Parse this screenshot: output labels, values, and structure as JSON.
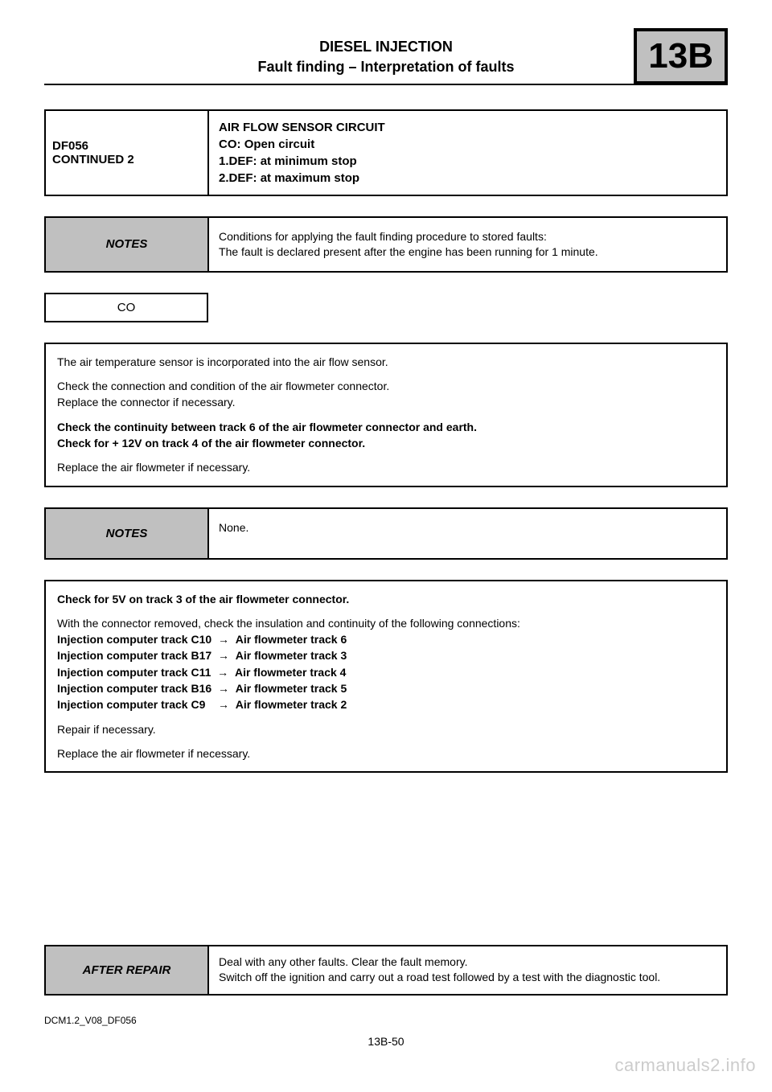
{
  "section_badge": "13B",
  "header": {
    "title": "DIESEL INJECTION",
    "subtitle": "Fault finding – Interpretation of faults"
  },
  "fault": {
    "code_lines": [
      "DF056",
      "CONTINUED 2"
    ],
    "desc": "AIR FLOW SENSOR CIRCUIT\nCO: Open circuit\n1.DEF: at minimum stop\n2.DEF: at maximum stop"
  },
  "notes1": {
    "label": "NOTES",
    "text": "Conditions for applying the fault finding procedure to stored faults:\nThe fault is declared present after the engine has been running for 1 minute."
  },
  "def_code": "CO",
  "proc1": {
    "p1": "The air temperature sensor is incorporated into the air flow sensor.",
    "p2": "Check the connection and condition of the air flowmeter connector.\nReplace the connector if necessary.",
    "p3": "Check the continuity between track 6 of the air flowmeter connector and earth.\nCheck for + 12V on track 4 of the air flowmeter connector.",
    "p4": "Replace the air flowmeter if necessary."
  },
  "notes2": {
    "label": "NOTES",
    "text": "None."
  },
  "proc2": {
    "p1": "Check for 5V on track 3 of the air flowmeter connector.",
    "p2_intro": "With the connector removed, check the insulation and continuity of the following connections:",
    "conn1_left": "Injection computer track C10",
    "conn1_right": "Air flowmeter track 6",
    "conn2_left": "Injection computer track B17",
    "conn2_right": "Air flowmeter track 3",
    "conn3_left": "Injection computer track C11",
    "conn3_right": "Air flowmeter track 4",
    "conn4_left": "Injection computer track B16",
    "conn4_right": "Air flowmeter track 5",
    "conn5_left": "Injection computer track C9",
    "conn5_right": "Air flowmeter track 2",
    "p3": "Repair if necessary.",
    "p4": "Replace the air flowmeter if necessary."
  },
  "after_repair": {
    "label": "AFTER REPAIR",
    "text": "Deal with any other faults. Clear the fault memory.\nSwitch off the ignition and carry out a road test followed by a test with the diagnostic tool."
  },
  "footer_code": "DCM1.2_V08_DF056",
  "footer_page": "13B-50",
  "watermark": "carmanuals2.info"
}
